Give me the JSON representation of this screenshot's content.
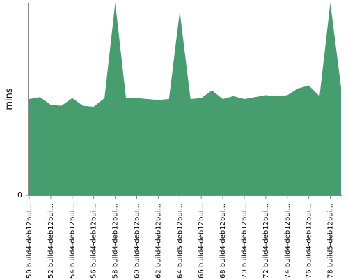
{
  "chart_data": {
    "type": "area",
    "ylabel": "mins",
    "categories": [
      "#50 build4-deb12bui...",
      null,
      "#52 build4-deb12bui...",
      null,
      "#54 build4-deb12bui...",
      null,
      "#56 build4-deb12bui...",
      null,
      "#58 build4-deb12bui...",
      null,
      "#60 build4-deb12bui...",
      null,
      "#62 build4-deb12bui...",
      null,
      "#64 build5-deb12bui...",
      null,
      "#66 build4-deb12bui...",
      null,
      "#68 build4-deb12bui...",
      null,
      "#70 build4-deb12bui...",
      null,
      "#72 build4-deb12bui...",
      null,
      "#74 build4-deb12bui...",
      null,
      "#76 build4-deb12bui...",
      null,
      "#78 build5-deb12bui...",
      null
    ],
    "values": [
      10.0,
      10.2,
      9.4,
      9.3,
      10.1,
      9.3,
      9.2,
      10.1,
      20.0,
      10.1,
      10.1,
      10.0,
      9.9,
      10.0,
      19.1,
      10.0,
      10.1,
      10.9,
      10.0,
      10.3,
      10.0,
      10.2,
      10.4,
      10.3,
      10.4,
      11.1,
      11.4,
      10.3,
      20.0,
      11.2
    ],
    "color": "#469d6e",
    "ylim": [
      0,
      20
    ],
    "yticks": [
      0
    ]
  }
}
